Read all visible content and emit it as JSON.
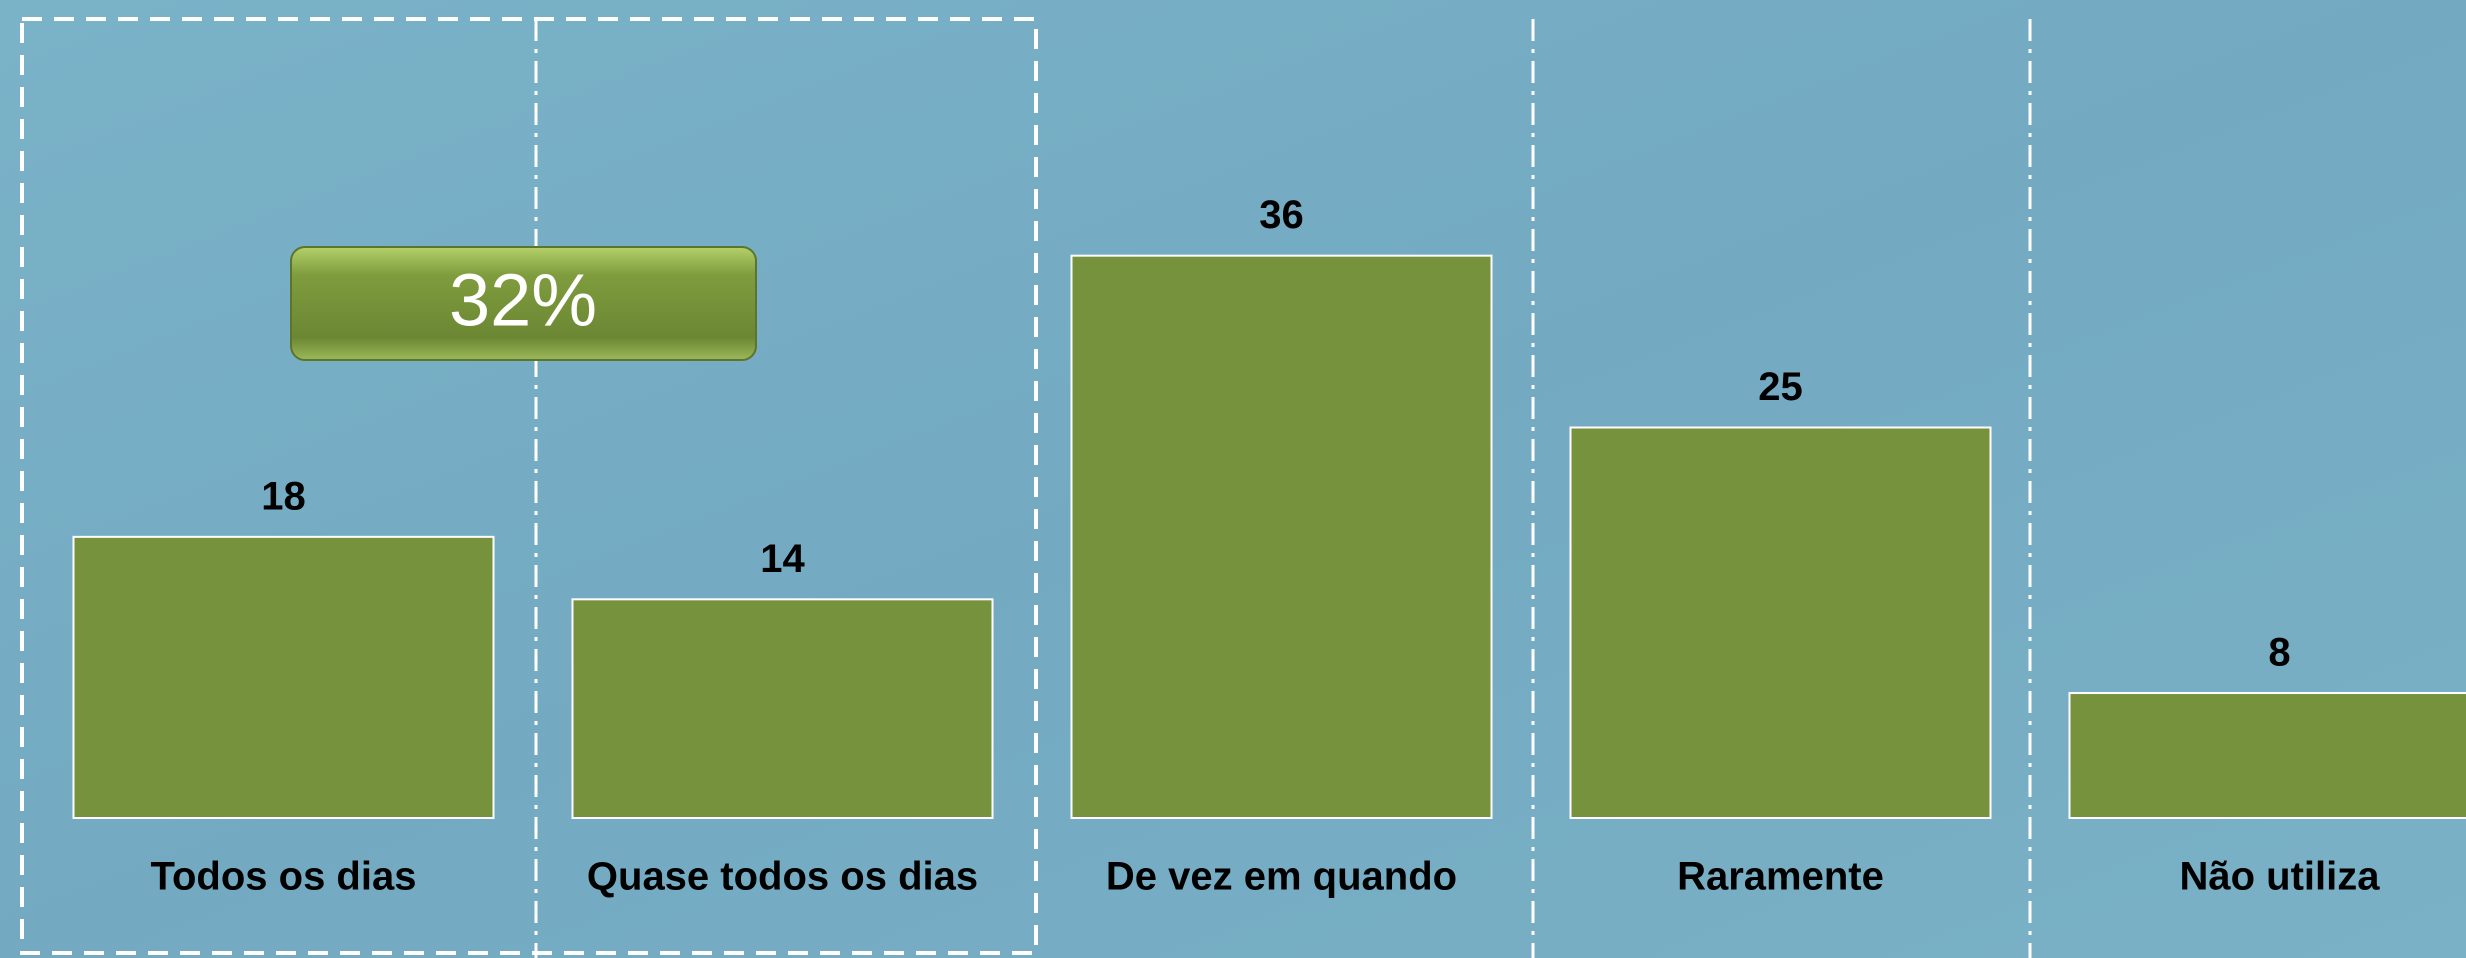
{
  "chart_data": {
    "type": "bar",
    "categories": [
      "Todos os dias",
      "Quase todos os dias",
      "De vez em quando",
      "Raramente",
      "Não utiliza"
    ],
    "values": [
      18,
      14,
      36,
      25,
      8
    ],
    "color": "#77923c",
    "annotations": [
      "32%"
    ]
  }
}
